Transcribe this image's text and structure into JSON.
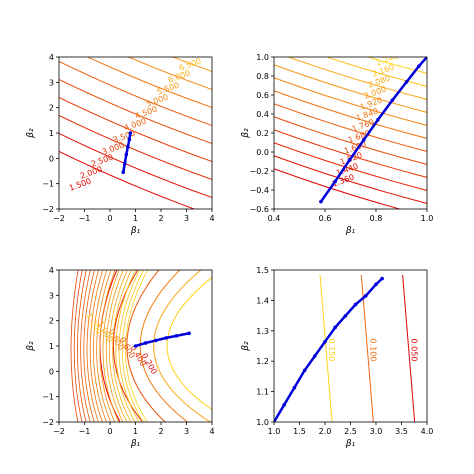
{
  "chart_data": [
    {
      "type": "contour",
      "panel": "top-left",
      "xlabel": "β₁",
      "ylabel": "β₂",
      "xlim": [
        -2,
        4
      ],
      "ylim": [
        -2,
        4
      ],
      "xticks": [
        "−2",
        "−1",
        "0",
        "1",
        "2",
        "3",
        "4"
      ],
      "yticks": [
        "−2",
        "−1",
        "0",
        "1",
        "2",
        "3",
        "4"
      ],
      "contour_levels": [
        "1.500",
        "2.000",
        "2.500",
        "3.000",
        "3.500",
        "4.000",
        "4.500",
        "5.000",
        "5.500",
        "6.000",
        "6.500",
        "7.000"
      ],
      "colormap_low": "#e00000",
      "colormap_high": "#ffd21a",
      "path_color": "#0000dd",
      "path_x": [
        0.52,
        0.58,
        0.64,
        0.7,
        0.76,
        0.8
      ],
      "path_y": [
        -0.55,
        -0.2,
        0.15,
        0.45,
        0.75,
        1.0
      ]
    },
    {
      "type": "contour",
      "panel": "top-right",
      "xlabel": "β₁",
      "ylabel": "β₂",
      "xlim": [
        0.25,
        1.0
      ],
      "ylim": [
        -0.65,
        1.0
      ],
      "xticks": [
        "0.4",
        "0.6",
        "0.8",
        "1.0"
      ],
      "yticks": [
        "−0.6",
        "−0.4",
        "−0.2",
        "0.0",
        "0.2",
        "0.4",
        "0.6",
        "0.8",
        "1.0"
      ],
      "contour_levels": [
        "1.360",
        "1.440",
        "1.520",
        "1.600",
        "1.680",
        "1.760",
        "1.840",
        "1.920",
        "2.000",
        "2.080",
        "2.160",
        "2.240"
      ],
      "colormap_low": "#e00000",
      "colormap_high": "#ffd21a",
      "path_color": "#0000dd",
      "path_x": [
        0.48,
        0.55,
        0.62,
        0.69,
        0.76,
        0.83,
        0.9,
        0.96,
        1.0
      ],
      "path_y": [
        -0.57,
        -0.35,
        -0.12,
        0.1,
        0.32,
        0.53,
        0.73,
        0.9,
        1.0
      ]
    },
    {
      "type": "contour",
      "panel": "bottom-left",
      "xlabel": "β₁",
      "ylabel": "β₂",
      "xlim": [
        -2,
        4
      ],
      "ylim": [
        -2,
        4
      ],
      "xticks": [
        "−2",
        "−1",
        "0",
        "1",
        "2",
        "3",
        "4"
      ],
      "yticks": [
        "−2",
        "−1",
        "0",
        "1",
        "2",
        "3",
        "4"
      ],
      "contour_levels": [
        "0.200",
        "0.400",
        "0.600",
        "0.800",
        "1.000",
        "1.200"
      ],
      "colormap_low": "#e00000",
      "colormap_high": "#ffd21a",
      "path_color": "#0000dd",
      "path_x": [
        1.0,
        1.4,
        1.8,
        2.2,
        2.6,
        3.1
      ],
      "path_y": [
        1.0,
        1.12,
        1.22,
        1.32,
        1.4,
        1.5
      ]
    },
    {
      "type": "contour",
      "panel": "bottom-right",
      "xlabel": "β₁",
      "ylabel": "β₂",
      "xlim": [
        1.0,
        4.0
      ],
      "ylim": [
        1.0,
        1.53
      ],
      "xticks": [
        "1.0",
        "1.5",
        "2.0",
        "2.5",
        "3.0",
        "3.5",
        "4.0"
      ],
      "yticks": [
        "1.0",
        "1.1",
        "1.2",
        "1.3",
        "1.4",
        "1.5"
      ],
      "contour_levels": [
        "0.050",
        "0.100",
        "0.150"
      ],
      "colormap_low": "#e00000",
      "colormap_high": "#ffd21a",
      "path_color": "#0000dd",
      "path_x": [
        1.0,
        1.2,
        1.4,
        1.6,
        1.8,
        2.0,
        2.2,
        2.4,
        2.6,
        2.8,
        3.0,
        3.12
      ],
      "path_y": [
        1.0,
        1.06,
        1.12,
        1.18,
        1.23,
        1.28,
        1.33,
        1.37,
        1.41,
        1.44,
        1.48,
        1.5
      ]
    }
  ]
}
